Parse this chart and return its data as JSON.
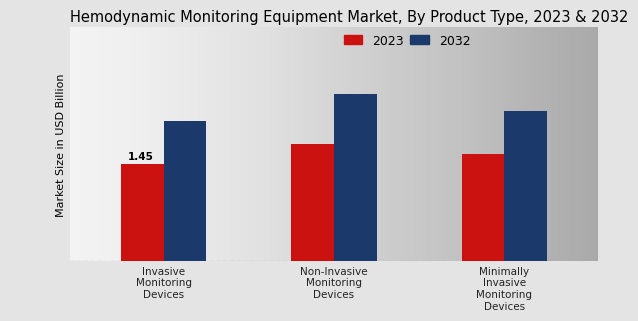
{
  "title": "Hemodynamic Monitoring Equipment Market, By Product Type, 2023 & 2032",
  "ylabel": "Market Size in USD Billion",
  "categories": [
    "Invasive\nMonitoring\nDevices",
    "Non-Invasive\nMonitoring\nDevices",
    "Minimally\nInvasive\nMonitoring\nDevices"
  ],
  "values_2023": [
    1.45,
    1.75,
    1.6
  ],
  "values_2032": [
    2.1,
    2.5,
    2.25
  ],
  "color_2023": "#cc1111",
  "color_2032": "#1b3a6b",
  "annotation_text": "1.45",
  "legend_labels": [
    "2023",
    "2032"
  ],
  "bar_width": 0.25,
  "ylim": [
    0,
    3.5
  ],
  "title_fontsize": 10.5,
  "axis_fontsize": 8,
  "tick_fontsize": 7.5,
  "legend_fontsize": 9,
  "annotation_fontsize": 7.5,
  "red_strip_color": "#cc0000",
  "bg_color": "#e8e8e8"
}
